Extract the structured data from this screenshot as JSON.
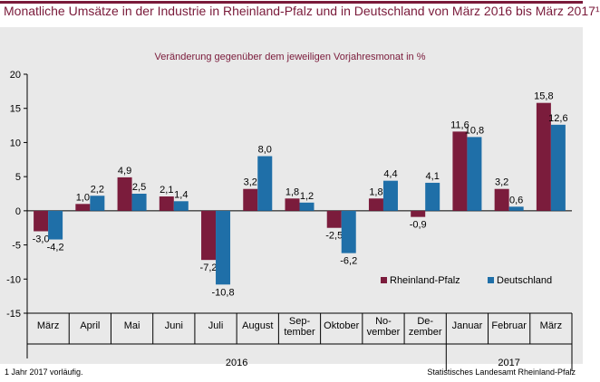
{
  "header": {
    "title": "Monatliche Umsätze in der Industrie in Rheinland-Pfalz und in Deutschland von März 2016 bis März 2017¹",
    "footnote": "1 Jahr 2017 vorläufig.",
    "source": "Statistisches Landesamt Rheinland-Pfalz"
  },
  "colors": {
    "rlp": "#7b1c3c",
    "de": "#1f6fa8",
    "accent": "#7a1a3a",
    "background": "#e9e9e9"
  },
  "chart_data": {
    "type": "bar",
    "subtitle": "Veränderung gegenüber dem jeweiligen Vorjahresmonat in %",
    "categories": [
      [
        "März"
      ],
      [
        "April"
      ],
      [
        "Mai"
      ],
      [
        "Juni"
      ],
      [
        "Juli"
      ],
      [
        "August"
      ],
      [
        "Sep-",
        "tember"
      ],
      [
        "Oktober"
      ],
      [
        "No-",
        "vember"
      ],
      [
        "De-",
        "zember"
      ],
      [
        "Januar"
      ],
      [
        "Februar"
      ],
      [
        "März"
      ]
    ],
    "years": [
      {
        "label": "2016",
        "start": 0,
        "end": 9
      },
      {
        "label": "2017",
        "start": 10,
        "end": 12
      }
    ],
    "series": [
      {
        "name": "Rheinland-Pfalz",
        "values": [
          -3.0,
          1.0,
          4.9,
          2.1,
          -7.2,
          3.2,
          1.8,
          -2.5,
          1.8,
          -0.9,
          11.6,
          3.2,
          15.8
        ],
        "labels": [
          "-3,0",
          "1,0",
          "4,9",
          "2,1",
          "-7,2",
          "3,2",
          "1,8",
          "-2,5",
          "1,8",
          "-0,9",
          "11,6",
          "3,2",
          "15,8"
        ]
      },
      {
        "name": "Deutschland",
        "values": [
          -4.2,
          2.2,
          2.5,
          1.4,
          -10.8,
          8.0,
          1.2,
          -6.2,
          4.4,
          4.1,
          10.8,
          0.6,
          12.6
        ],
        "labels": [
          "-4,2",
          "2,2",
          "2,5",
          "1,4",
          "-10,8",
          "8,0",
          "1,2",
          "-6,2",
          "4,4",
          "4,1",
          "10,8",
          "0,6",
          "12,6"
        ]
      }
    ],
    "ylim": [
      -15,
      20
    ],
    "yticks": [
      -15,
      -10,
      -5,
      0,
      5,
      10,
      15,
      20
    ],
    "grid": false,
    "legend": "bottom-right"
  }
}
